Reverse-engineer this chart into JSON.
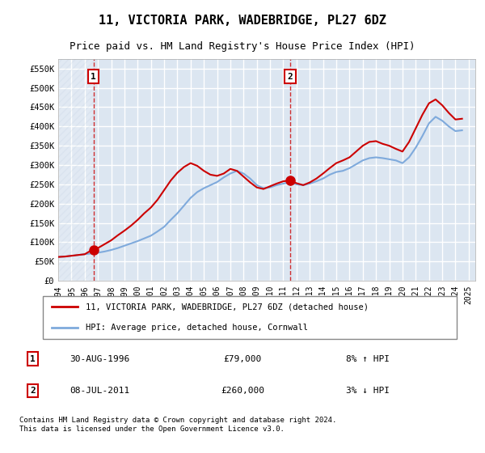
{
  "title": "11, VICTORIA PARK, WADEBRIDGE, PL27 6DZ",
  "subtitle": "Price paid vs. HM Land Registry's House Price Index (HPI)",
  "legend_line1": "11, VICTORIA PARK, WADEBRIDGE, PL27 6DZ (detached house)",
  "legend_line2": "HPI: Average price, detached house, Cornwall",
  "transaction1_label": "1",
  "transaction1_date": "30-AUG-1996",
  "transaction1_price": "£79,000",
  "transaction1_hpi": "8% ↑ HPI",
  "transaction1_year": 1996.66,
  "transaction1_value": 79000,
  "transaction2_label": "2",
  "transaction2_date": "08-JUL-2011",
  "transaction2_price": "£260,000",
  "transaction2_hpi": "3% ↓ HPI",
  "transaction2_year": 2011.52,
  "transaction2_value": 260000,
  "footer": "Contains HM Land Registry data © Crown copyright and database right 2024.\nThis data is licensed under the Open Government Licence v3.0.",
  "hpi_color": "#7faadc",
  "price_color": "#cc0000",
  "marker_color": "#cc0000",
  "background_color": "#dce6f1",
  "hatch_color": "#c0cfe0",
  "ylim": [
    0,
    575000
  ],
  "yticks": [
    0,
    50000,
    100000,
    150000,
    200000,
    250000,
    300000,
    350000,
    400000,
    450000,
    500000,
    550000
  ],
  "ylabel_format": "£{0}K",
  "hpi_years": [
    1994,
    1994.5,
    1995,
    1995.5,
    1996,
    1996.5,
    1997,
    1997.5,
    1998,
    1998.5,
    1999,
    1999.5,
    2000,
    2000.5,
    2001,
    2001.5,
    2002,
    2002.5,
    2003,
    2003.5,
    2004,
    2004.5,
    2005,
    2005.5,
    2006,
    2006.5,
    2007,
    2007.5,
    2008,
    2008.5,
    2009,
    2009.5,
    2010,
    2010.5,
    2011,
    2011.5,
    2012,
    2012.5,
    2013,
    2013.5,
    2014,
    2014.5,
    2015,
    2015.5,
    2016,
    2016.5,
    2017,
    2017.5,
    2018,
    2018.5,
    2019,
    2019.5,
    2020,
    2020.5,
    2021,
    2021.5,
    2022,
    2022.5,
    2023,
    2023.5,
    2024,
    2024.5
  ],
  "hpi_values": [
    62000,
    63000,
    65000,
    67000,
    69000,
    71000,
    73000,
    76000,
    80000,
    85000,
    91000,
    97000,
    103000,
    110000,
    117000,
    128000,
    140000,
    158000,
    175000,
    195000,
    215000,
    230000,
    240000,
    248000,
    256000,
    268000,
    278000,
    285000,
    278000,
    265000,
    248000,
    240000,
    242000,
    248000,
    252000,
    255000,
    250000,
    248000,
    252000,
    258000,
    265000,
    275000,
    282000,
    285000,
    292000,
    302000,
    312000,
    318000,
    320000,
    318000,
    315000,
    312000,
    305000,
    320000,
    345000,
    375000,
    408000,
    425000,
    415000,
    400000,
    388000,
    390000
  ],
  "price_years": [
    1994,
    1994.5,
    1995,
    1995.5,
    1996,
    1996.5,
    1997,
    1997.5,
    1998,
    1998.5,
    1999,
    1999.5,
    2000,
    2000.5,
    2001,
    2001.5,
    2002,
    2002.5,
    2003,
    2003.5,
    2004,
    2004.5,
    2005,
    2005.5,
    2006,
    2006.5,
    2007,
    2007.5,
    2008,
    2008.5,
    2009,
    2009.5,
    2010,
    2010.5,
    2011,
    2011.5,
    2012,
    2012.5,
    2013,
    2013.5,
    2014,
    2014.5,
    2015,
    2015.5,
    2016,
    2016.5,
    2017,
    2017.5,
    2018,
    2018.5,
    2019,
    2019.5,
    2020,
    2020.5,
    2021,
    2021.5,
    2022,
    2022.5,
    2023,
    2023.5,
    2024,
    2024.5
  ],
  "price_values": [
    62000,
    63000,
    65000,
    67000,
    69000,
    79000,
    85000,
    95000,
    105000,
    118000,
    130000,
    143000,
    158000,
    175000,
    190000,
    210000,
    235000,
    260000,
    280000,
    295000,
    305000,
    298000,
    285000,
    275000,
    272000,
    278000,
    290000,
    285000,
    270000,
    255000,
    242000,
    238000,
    245000,
    252000,
    258000,
    260000,
    253000,
    248000,
    255000,
    265000,
    278000,
    292000,
    305000,
    312000,
    320000,
    335000,
    350000,
    360000,
    362000,
    355000,
    350000,
    342000,
    335000,
    360000,
    395000,
    430000,
    460000,
    470000,
    455000,
    435000,
    418000,
    420000
  ],
  "xtick_years": [
    1994,
    1995,
    1996,
    1997,
    1998,
    1999,
    2000,
    2001,
    2002,
    2003,
    2004,
    2005,
    2006,
    2007,
    2008,
    2009,
    2010,
    2011,
    2012,
    2013,
    2014,
    2015,
    2016,
    2017,
    2018,
    2019,
    2020,
    2021,
    2022,
    2023,
    2024,
    2025
  ],
  "plot_bg": "#dce6f1",
  "grid_color": "#ffffff",
  "hatch_start": 1994,
  "hatch_end": 1996.66,
  "box_border_color": "#cc0000"
}
